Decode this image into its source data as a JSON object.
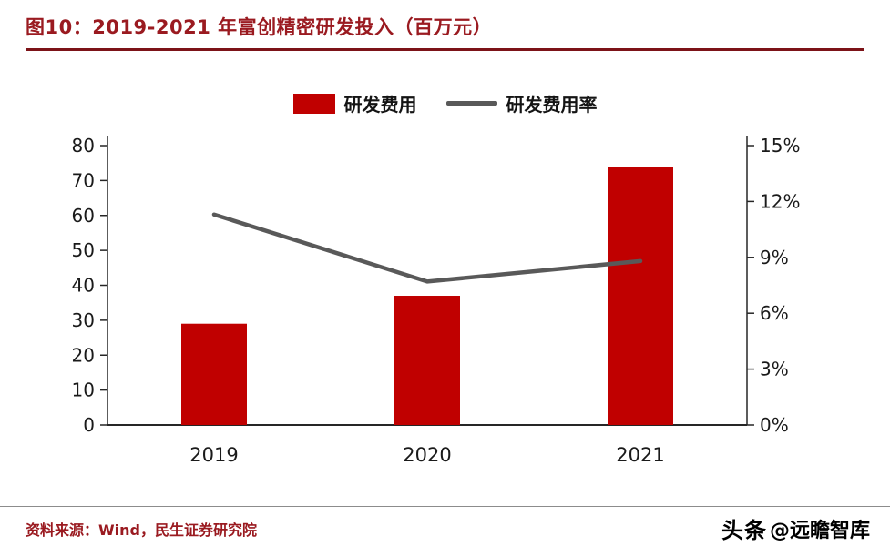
{
  "header": {
    "title": "图10：2019-2021 年富创精密研发投入（百万元）"
  },
  "chart_data": {
    "type": "bar",
    "title": "图10：2019-2021 年富创精密研发投入（百万元）",
    "categories": [
      "2019",
      "2020",
      "2021"
    ],
    "series": [
      {
        "name": "研发费用",
        "type": "bar",
        "axis": "left",
        "color": "#c00000",
        "values": [
          29,
          37,
          74
        ]
      },
      {
        "name": "研发费用率",
        "type": "line",
        "axis": "right",
        "color": "#595959",
        "values": [
          11.3,
          7.7,
          8.8
        ]
      }
    ],
    "left_axis": {
      "min": 0,
      "max": 80,
      "step": 10
    },
    "right_axis": {
      "min": 0,
      "max": 15,
      "step": 3,
      "suffix": "%"
    },
    "legend_position": "top",
    "grid": false,
    "xlabel": "",
    "ylabel": ""
  },
  "footer": {
    "source": "资料来源：Wind，民生证券研究院",
    "watermark_logo": "头条",
    "watermark_handle": "@远瞻智库"
  },
  "colors": {
    "title": "#9a1a20",
    "underline": "#7c1318",
    "bar": "#c00000",
    "line": "#595959",
    "axis": "#262626",
    "axis_text": "#1a1a1a",
    "source_text": "#9a1a20"
  }
}
